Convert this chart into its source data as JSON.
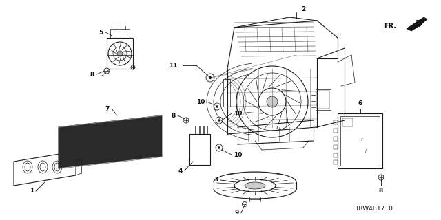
{
  "bg_color": "#ffffff",
  "line_color": "#1a1a1a",
  "label_color": "#111111",
  "diagram_code": "TRW4B1710",
  "fr_label": "FR.",
  "figsize": [
    6.4,
    3.2
  ],
  "dpi": 100,
  "gray_dark": "#222222",
  "gray_mid": "#555555",
  "gray_light": "#aaaaaa",
  "gray_filter": "#333333"
}
